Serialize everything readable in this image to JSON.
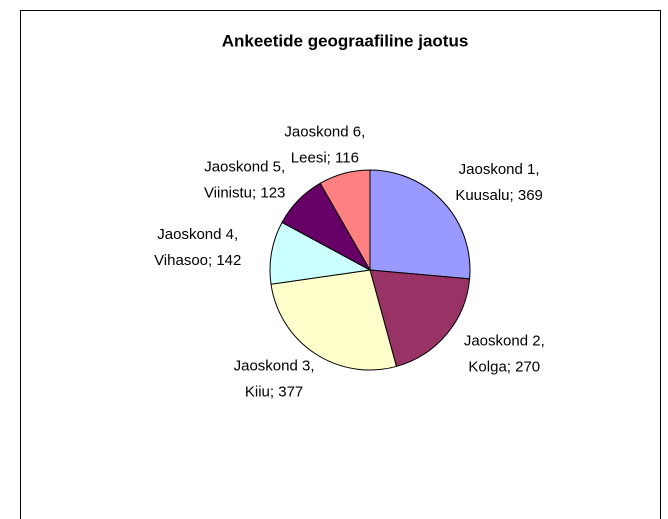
{
  "chart_data": {
    "type": "pie",
    "title": "Ankeetide geograafiline jaotus",
    "values": [
      369,
      270,
      377,
      142,
      123,
      116
    ],
    "value_labels": [
      "Jaoskond 1, Kuusalu; 369",
      "Jaoskond 2, Kolga; 270",
      "Jaoskond 3, Kiiu; 377",
      "Jaoskond 4, Vihasoo; 142",
      "Jaoskond 5, Viinistu; 123",
      "Jaoskond 6, Leesi; 116"
    ],
    "colors": [
      "#9999ff",
      "#993366",
      "#ffffcc",
      "#ccffff",
      "#660066",
      "#ff8080"
    ]
  }
}
